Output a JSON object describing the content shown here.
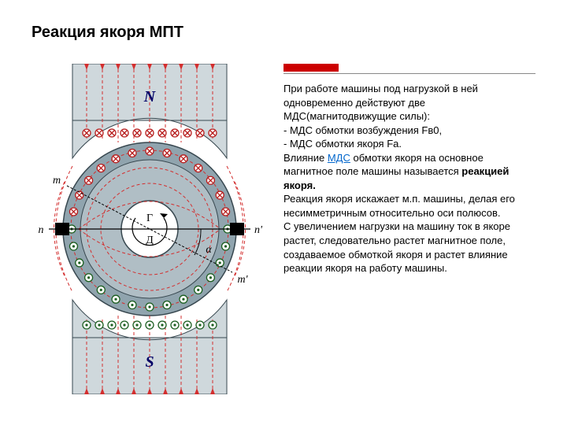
{
  "title": "Реакция якоря МПТ",
  "paragraph": {
    "p1": "При работе машины под нагрузкой в ней одновременно действуют две МДС(магнитодвижущие силы):",
    "p2": "- МДС обмотки возбуждения Fв0,",
    "p3": "- МДС обмотки якоря Fа.",
    "p4a": "Влияние ",
    "p4_link": "МДС",
    "p4b": " обмотки якоря на основное магнитное поле машины называется ",
    "p4_bold": "реакцией якоря.",
    "p5": "Реакция якоря искажает м.п. машины, делая его несимметричным относительно оси полюсов.",
    "p6": "С увеличением нагрузки на машину ток в якоре растет, следовательно растет магнитное поле, создаваемое обмоткой якоря и растет влияние реакции якоря на работу машины."
  },
  "diagram": {
    "labels": {
      "N": "N",
      "S": "S",
      "m_left": "m",
      "m_right": "m'",
      "n_left": "n",
      "n_right": "n'",
      "g": "Г",
      "d": "Д",
      "alpha": "α"
    },
    "colors": {
      "pole_fill": "#cfd8dc",
      "pole_border": "#37474f",
      "rotor_fill": "#90a4ae",
      "rotor_border": "#37474f",
      "inner_circle_fill": "#ffffff",
      "field_line": "#d32f2f",
      "conductor_dot": "#1b5e20",
      "conductor_cross": "#b71c1c",
      "arrow": "#d32f2f",
      "brush": "#000000"
    }
  },
  "style": {
    "accent_color": "#cc0000",
    "title_fontsize": 20,
    "body_fontsize": 13,
    "link_color": "#0066cc"
  }
}
